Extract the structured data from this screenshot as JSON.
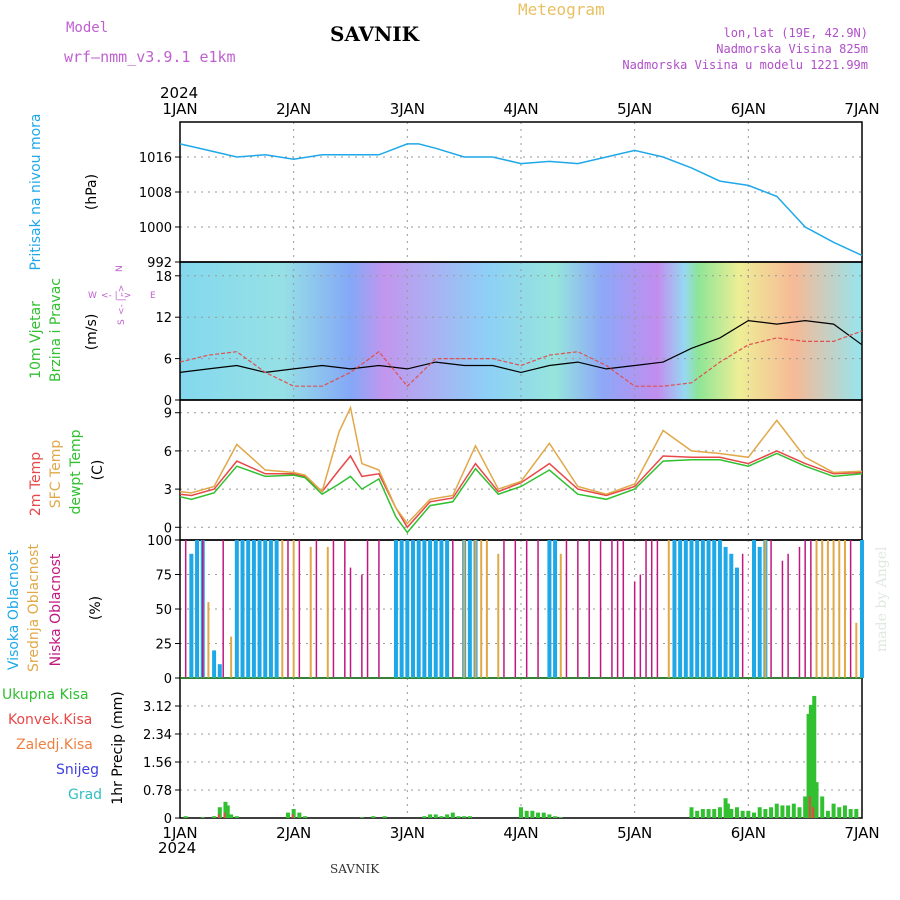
{
  "header": {
    "model_label": "Model",
    "model_name": "wrf–nmm_v3.9.1  e1km",
    "station": "SAVNIK",
    "meteogram": "Meteogram",
    "lonlat": "lon,lat (19E, 42.9N)",
    "elevation": "Nadmorska Visina 825m",
    "model_elevation": "Nadmorska Visina u modelu 1221.99m",
    "year_top": "2024",
    "year_bottom": "2024"
  },
  "footer": {
    "station": "SAVNIK",
    "signature": "made by Angel"
  },
  "colors": {
    "pressure": "#1fa8e8",
    "temp2m": "#e84848",
    "sfc": "#e0a848",
    "dewpt": "#30c030",
    "high_cloud": "#1fa8e8",
    "mid_cloud": "#e0a848",
    "low_cloud": "#c01880",
    "precip_total": "#30c030",
    "precip_conv": "#e84848",
    "wind_speed_line": "#000000",
    "wind_gust_line": "#e05050"
  },
  "panel_labels": {
    "pressure": [
      "Pritisak na nivou mora"
    ],
    "pressure_unit": "(hPa)",
    "wind": [
      "10m Vjetar",
      "Brzina i Pravac"
    ],
    "wind_unit": "(m/s)",
    "wind_compass": {
      "n": "N",
      "s": "S",
      "w": "W",
      "e": "E",
      "arrow_h": "<- | ->",
      "arrow_v": "<- | ->"
    },
    "temp": [
      "2m Temp",
      "SFC Temp",
      "dewpt Temp"
    ],
    "temp_unit": "(C)",
    "cloud": [
      "Visoka Oblacnost",
      "Srednja Oblacnost",
      "Niska Oblacnost"
    ],
    "cloud_unit": "(%)",
    "precip": [
      "Ukupna Kisa",
      "Konvek.Kisa",
      "Zaledj.Kisa",
      "Snijeg",
      "Grad"
    ],
    "precip_unit": "1hr Precip (mm)"
  },
  "chart_data": [
    {
      "type": "line",
      "name": "pressure",
      "x_ticks": [
        "1JAN",
        "2JAN",
        "3JAN",
        "4JAN",
        "5JAN",
        "6JAN",
        "7JAN"
      ],
      "xlim": [
        0,
        6
      ],
      "ylim": [
        992,
        1024
      ],
      "y_ticks": [
        992,
        1000,
        1008,
        1016
      ],
      "series": [
        {
          "x": [
            0,
            0.25,
            0.5,
            0.75,
            1.0,
            1.25,
            1.5,
            1.75,
            2.0,
            2.1,
            2.25,
            2.5,
            2.75,
            3.0,
            3.25,
            3.5,
            3.75,
            4.0,
            4.25,
            4.5,
            4.75,
            5.0,
            5.25,
            5.5,
            5.75,
            6.0
          ],
          "y": [
            1019,
            1017.5,
            1016,
            1016.5,
            1015.5,
            1016.5,
            1016.5,
            1016.5,
            1019,
            1019,
            1018,
            1016,
            1016,
            1014.5,
            1015,
            1014.5,
            1016,
            1017.5,
            1016,
            1013.5,
            1010.5,
            1009.5,
            1007,
            1000,
            996.5,
            993.5
          ]
        }
      ]
    },
    {
      "type": "line",
      "name": "wind",
      "x_ticks": [
        "1JAN",
        "2JAN",
        "3JAN",
        "4JAN",
        "5JAN",
        "6JAN",
        "7JAN"
      ],
      "xlim": [
        0,
        6
      ],
      "ylim": [
        0,
        20
      ],
      "y_ticks": [
        0,
        6,
        12,
        18
      ],
      "series": [
        {
          "x": [
            0,
            0.25,
            0.5,
            0.75,
            1.0,
            1.25,
            1.5,
            1.75,
            2.0,
            2.25,
            2.5,
            2.75,
            3.0,
            3.25,
            3.5,
            3.75,
            4.0,
            4.25,
            4.5,
            4.75,
            5.0,
            5.25,
            5.5,
            5.75,
            6.0
          ],
          "y": [
            4,
            4.5,
            5,
            4,
            4.5,
            5,
            4.5,
            5,
            4.5,
            5.5,
            5,
            5,
            4,
            5,
            5.5,
            4.5,
            5,
            5.5,
            7.5,
            9,
            11.5,
            11,
            11.5,
            11,
            8
          ]
        },
        {
          "x": [
            0,
            0.25,
            0.5,
            0.75,
            1.0,
            1.25,
            1.5,
            1.75,
            2.0,
            2.25,
            2.5,
            2.75,
            3.0,
            3.25,
            3.5,
            3.75,
            4.0,
            4.25,
            4.5,
            4.75,
            5.0,
            5.25,
            5.5,
            5.75,
            6.0
          ],
          "y": [
            5.5,
            6.5,
            7,
            4,
            2,
            2,
            4,
            7,
            2,
            6,
            6,
            6,
            5,
            6.5,
            7,
            5,
            2,
            2,
            2.5,
            5.5,
            8,
            9,
            8.5,
            8.5,
            10
          ]
        }
      ]
    },
    {
      "type": "line",
      "name": "temperature",
      "x_ticks": [
        "1JAN",
        "2JAN",
        "3JAN",
        "4JAN",
        "5JAN",
        "6JAN",
        "7JAN"
      ],
      "xlim": [
        0,
        6
      ],
      "ylim": [
        -1,
        10
      ],
      "y_ticks": [
        0,
        3,
        6,
        9
      ],
      "series": [
        {
          "x": [
            0,
            0.1,
            0.3,
            0.5,
            0.75,
            1.0,
            1.1,
            1.25,
            1.4,
            1.5,
            1.6,
            1.75,
            1.9,
            2.0,
            2.2,
            2.4,
            2.6,
            2.8,
            3.0,
            3.25,
            3.5,
            3.75,
            4.0,
            4.25,
            4.5,
            4.75,
            5.0,
            5.25,
            5.5,
            5.75,
            6.0
          ],
          "y": [
            2.6,
            2.5,
            3,
            5.2,
            4.2,
            4.2,
            4,
            2.8,
            4.5,
            5.6,
            4,
            4.2,
            1.5,
            0,
            2,
            2.3,
            5,
            2.8,
            3.5,
            5,
            3,
            2.5,
            3.2,
            5.6,
            5.5,
            5.5,
            5,
            6,
            5,
            4.2,
            4.3
          ]
        },
        {
          "x": [
            0,
            0.1,
            0.3,
            0.5,
            0.75,
            1.0,
            1.1,
            1.25,
            1.4,
            1.5,
            1.6,
            1.75,
            1.9,
            2.0,
            2.2,
            2.4,
            2.6,
            2.8,
            3.0,
            3.25,
            3.5,
            3.75,
            4.0,
            4.25,
            4.5,
            4.75,
            5.0,
            5.25,
            5.5,
            5.75,
            6.0
          ],
          "y": [
            2.8,
            2.7,
            3.2,
            6.5,
            4.5,
            4.3,
            4.1,
            2.8,
            7.5,
            9.4,
            5,
            4.5,
            1.5,
            0.3,
            2.2,
            2.5,
            6.4,
            3,
            3.6,
            6.6,
            3.2,
            2.6,
            3.4,
            7.6,
            6,
            5.8,
            5.5,
            8.4,
            5.5,
            4.3,
            4.4
          ]
        },
        {
          "x": [
            0,
            0.1,
            0.3,
            0.5,
            0.75,
            1.0,
            1.1,
            1.25,
            1.4,
            1.5,
            1.6,
            1.75,
            1.9,
            2.0,
            2.2,
            2.4,
            2.6,
            2.8,
            3.0,
            3.25,
            3.5,
            3.75,
            4.0,
            4.25,
            4.5,
            4.75,
            5.0,
            5.25,
            5.5,
            5.75,
            6.0
          ],
          "y": [
            2.4,
            2.2,
            2.7,
            4.8,
            4,
            4.1,
            3.9,
            2.6,
            3.4,
            4,
            3,
            3.8,
            0.8,
            -0.4,
            1.7,
            2,
            4.6,
            2.6,
            3.2,
            4.5,
            2.6,
            2.2,
            3,
            5.2,
            5.3,
            5.3,
            4.8,
            5.8,
            4.8,
            4,
            4.2
          ]
        }
      ]
    },
    {
      "type": "bar",
      "name": "cloud_cover",
      "x_ticks": [
        "1JAN",
        "2JAN",
        "3JAN",
        "4JAN",
        "5JAN",
        "6JAN",
        "7JAN"
      ],
      "xlim": [
        0,
        6
      ],
      "ylim": [
        0,
        100
      ],
      "y_ticks": [
        0,
        25,
        50,
        75,
        100
      ],
      "series": [
        {
          "x": [
            0.1,
            0.15,
            0.2,
            0.3,
            0.35,
            0.5,
            0.55,
            0.6,
            0.65,
            0.7,
            0.75,
            0.8,
            0.85,
            1.9,
            1.95,
            2.0,
            2.05,
            2.1,
            2.15,
            2.2,
            2.25,
            2.3,
            2.35,
            2.5,
            2.55,
            2.6,
            3.25,
            3.3,
            4.35,
            4.4,
            4.45,
            4.5,
            4.55,
            4.6,
            4.65,
            4.7,
            4.75,
            4.8,
            4.85,
            4.9,
            5.05,
            5.1,
            5.15,
            6.0
          ],
          "y": [
            90,
            100,
            100,
            20,
            10,
            100,
            100,
            100,
            100,
            100,
            100,
            100,
            100,
            100,
            100,
            100,
            100,
            100,
            100,
            100,
            100,
            100,
            100,
            100,
            100,
            100,
            100,
            100,
            100,
            100,
            100,
            100,
            100,
            100,
            100,
            100,
            100,
            95,
            90,
            80,
            100,
            95,
            100,
            100
          ]
        },
        {
          "x": [
            0.25,
            0.45,
            0.9,
            1.0,
            1.15,
            1.3,
            2.5,
            2.6,
            2.65,
            2.7,
            2.8,
            3.35,
            4.3,
            5.15,
            5.6,
            5.65,
            5.7,
            5.75,
            5.8,
            5.85,
            5.95
          ],
          "y": [
            55,
            30,
            100,
            100,
            95,
            95,
            100,
            100,
            100,
            100,
            90,
            90,
            100,
            100,
            100,
            100,
            100,
            100,
            100,
            100,
            40
          ]
        },
        {
          "x": [
            0.05,
            0.2,
            0.38,
            0.95,
            1.05,
            1.2,
            1.35,
            1.45,
            1.5,
            1.6,
            1.65,
            1.75,
            2.4,
            2.85,
            2.95,
            3.05,
            3.15,
            3.4,
            3.5,
            3.6,
            3.7,
            3.8,
            3.85,
            3.9,
            4.0,
            4.05,
            4.1,
            4.15,
            4.2,
            4.95,
            5.2,
            5.3,
            5.35,
            5.45,
            5.5,
            5.55,
            5.9
          ],
          "y": [
            100,
            100,
            100,
            100,
            100,
            100,
            100,
            100,
            80,
            75,
            100,
            100,
            100,
            100,
            100,
            100,
            100,
            100,
            100,
            100,
            100,
            100,
            100,
            100,
            70,
            75,
            100,
            100,
            100,
            90,
            100,
            85,
            90,
            95,
            100,
            100,
            100
          ]
        }
      ]
    },
    {
      "type": "bar",
      "name": "precipitation",
      "x_ticks": [
        "1JAN",
        "2JAN",
        "3JAN",
        "4JAN",
        "5JAN",
        "6JAN",
        "7JAN"
      ],
      "xlim": [
        0,
        6
      ],
      "ylim": [
        0,
        3.9
      ],
      "y_ticks": [
        0,
        0.78,
        1.56,
        2.34,
        3.12
      ],
      "series": [
        {
          "x": [
            0.05,
            0.2,
            0.3,
            0.35,
            0.4,
            0.42,
            0.45,
            0.5,
            0.95,
            1.0,
            1.05,
            1.1,
            1.6,
            1.7,
            1.8,
            2.15,
            2.2,
            2.25,
            2.3,
            2.35,
            2.4,
            2.45,
            2.5,
            2.55,
            3.0,
            3.05,
            3.1,
            3.15,
            3.2,
            3.25,
            3.3,
            3.35,
            4.5,
            4.55,
            4.6,
            4.65,
            4.7,
            4.75,
            4.8,
            4.82,
            4.85,
            4.9,
            4.95,
            5.0,
            5.05,
            5.1,
            5.15,
            5.2,
            5.25,
            5.3,
            5.35,
            5.4,
            5.45,
            5.5,
            5.53,
            5.55,
            5.58,
            5.6,
            5.65,
            5.7,
            5.75,
            5.8,
            5.85,
            5.9,
            5.95
          ],
          "y": [
            0.05,
            0.02,
            0.05,
            0.3,
            0.45,
            0.35,
            0.1,
            0.05,
            0.15,
            0.25,
            0.15,
            0.05,
            0.02,
            0.05,
            0.05,
            0.05,
            0.1,
            0.1,
            0.05,
            0.1,
            0.15,
            0.05,
            0.05,
            0.05,
            0.3,
            0.2,
            0.2,
            0.15,
            0.15,
            0.1,
            0.05,
            0.02,
            0.3,
            0.2,
            0.25,
            0.25,
            0.25,
            0.3,
            0.55,
            0.4,
            0.25,
            0.3,
            0.2,
            0.2,
            0.15,
            0.3,
            0.25,
            0.3,
            0.4,
            0.35,
            0.35,
            0.4,
            0.3,
            0.6,
            2.9,
            3.15,
            3.4,
            1.0,
            0.6,
            0.2,
            0.4,
            0.3,
            0.35,
            0.25,
            0.25
          ]
        },
        {
          "x": [
            0.35,
            0.4,
            1.0,
            5.55,
            5.58
          ],
          "y": [
            0.1,
            0.15,
            0.1,
            0.6,
            0.3
          ]
        }
      ]
    }
  ]
}
